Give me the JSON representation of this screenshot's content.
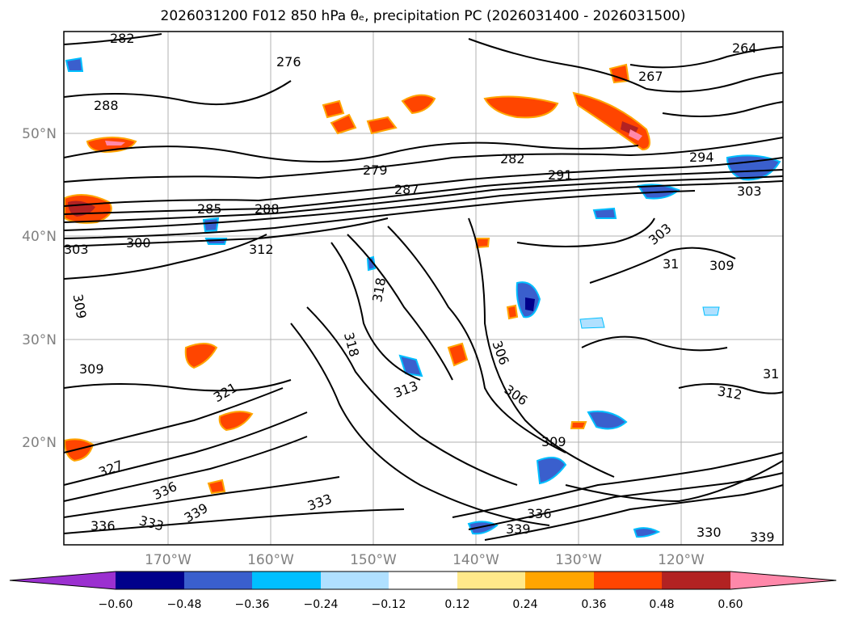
{
  "title": "2026031200 F012 850 hPa θₑ, precipitation PC (2026031400 - 2026031500)",
  "lat_labels": [
    "50°N",
    "40°N",
    "30°N",
    "20°N"
  ],
  "lon_labels": [
    "170°W",
    "160°W",
    "150°W",
    "140°W",
    "130°W",
    "120°W"
  ],
  "colorbar": {
    "colors": [
      "#9b30d0",
      "#00008b",
      "#3a5fcd",
      "#00bfff",
      "#b0e0ff",
      "#ffffff",
      "#ffe98a",
      "#ffa500",
      "#ff4500",
      "#b22222",
      "#ff88aa"
    ],
    "tick_labels": [
      "−0.60",
      "−0.48",
      "−0.36",
      "−0.24",
      "−0.12",
      "0.12",
      "0.24",
      "0.36",
      "0.48",
      "0.60"
    ]
  },
  "contour_labels": [
    {
      "text": "282"
    },
    {
      "text": "276"
    },
    {
      "text": "264"
    },
    {
      "text": "267"
    },
    {
      "text": "288"
    },
    {
      "text": "279"
    },
    {
      "text": "282"
    },
    {
      "text": "291"
    },
    {
      "text": "294"
    },
    {
      "text": "287"
    },
    {
      "text": "285"
    },
    {
      "text": "288"
    },
    {
      "text": "303"
    },
    {
      "text": "300"
    },
    {
      "text": "312"
    },
    {
      "text": "303"
    },
    {
      "text": "309"
    },
    {
      "text": "318"
    },
    {
      "text": "318"
    },
    {
      "text": "306"
    },
    {
      "text": "309"
    },
    {
      "text": "321"
    },
    {
      "text": "313"
    },
    {
      "text": "306"
    },
    {
      "text": "312"
    },
    {
      "text": "309"
    },
    {
      "text": "327"
    },
    {
      "text": "336"
    },
    {
      "text": "333"
    },
    {
      "text": "339"
    },
    {
      "text": "333"
    },
    {
      "text": "336"
    },
    {
      "text": "339"
    },
    {
      "text": "330"
    },
    {
      "text": "336"
    },
    {
      "text": "339"
    },
    {
      "text": "31"
    },
    {
      "text": "303"
    },
    {
      "text": "309"
    },
    {
      "text": "31"
    }
  ]
}
